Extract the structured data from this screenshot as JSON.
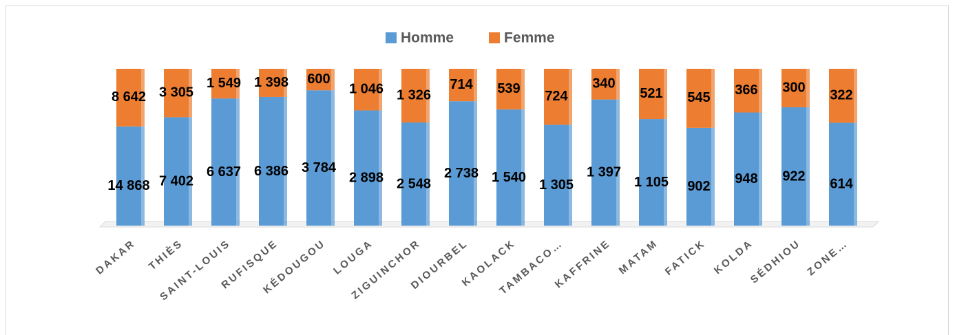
{
  "chart_data": {
    "type": "bar",
    "stack": "percent",
    "categories": [
      "DAKAR",
      "THIÈS",
      "SAINT-LOUIS",
      "RUFISQUE",
      "KÉDOUGOU",
      "LOUGA",
      "ZIGUINCHOR",
      "DIOURBEL",
      "KAOLACK",
      "TAMBACO…",
      "KAFFRINE",
      "MATAM",
      "FATICK",
      "KOLDA",
      "SÉDHIOU",
      "ZONE…"
    ],
    "series": [
      {
        "name": "Homme",
        "color": "#5b9bd5",
        "values": [
          14868,
          7402,
          6637,
          6386,
          3784,
          2898,
          2548,
          2738,
          1540,
          1305,
          1397,
          1105,
          902,
          948,
          922,
          614
        ],
        "value_labels": [
          "14 868",
          "7 402",
          "6 637",
          "6 386",
          "3 784",
          "2 898",
          "2 548",
          "2 738",
          "1 540",
          "1 305",
          "1 397",
          "1 105",
          "902",
          "948",
          "922",
          "614"
        ]
      },
      {
        "name": "Femme",
        "color": "#ed7d31",
        "values": [
          8642,
          3305,
          1549,
          1398,
          600,
          1046,
          1326,
          714,
          539,
          724,
          340,
          521,
          545,
          366,
          300,
          322
        ],
        "value_labels": [
          "8 642",
          "3 305",
          "1 549",
          "1 398",
          "600",
          "1 046",
          "1 326",
          "714",
          "539",
          "724",
          "340",
          "521",
          "545",
          "366",
          "300",
          "322"
        ]
      }
    ],
    "legend": "top"
  }
}
